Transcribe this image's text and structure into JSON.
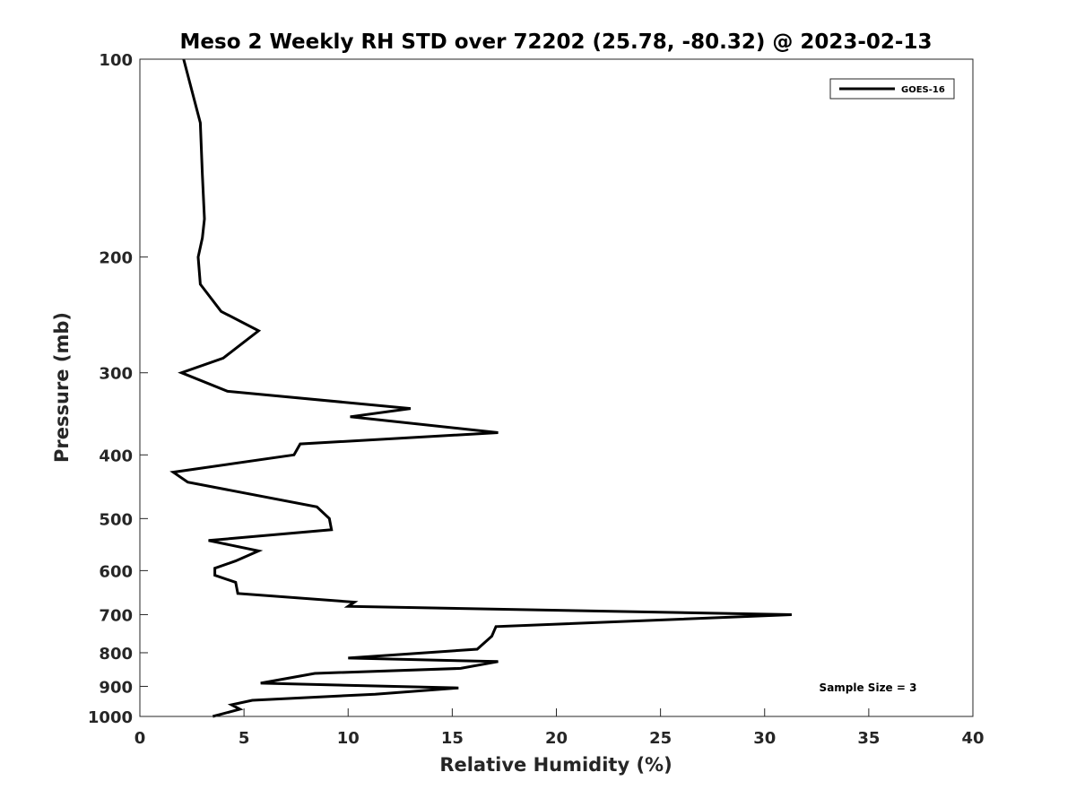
{
  "chart_data": {
    "type": "line",
    "title": "Meso 2 Weekly RH STD over 72202 (25.78, -80.32) @ 2023-02-13",
    "xlabel": "Relative Humidity (%)",
    "ylabel": "Pressure (mb)",
    "xlim": [
      0,
      40
    ],
    "ylim": [
      100,
      1000
    ],
    "y_scale": "log",
    "y_reversed": true,
    "x_ticks": [
      0,
      5,
      10,
      15,
      20,
      25,
      30,
      35,
      40
    ],
    "x_tick_labels": [
      "0",
      "5",
      "10",
      "15",
      "20",
      "25",
      "30",
      "35",
      "40"
    ],
    "y_ticks": [
      100,
      200,
      300,
      400,
      500,
      600,
      700,
      800,
      900,
      1000
    ],
    "y_tick_labels": [
      "100",
      "200",
      "300",
      "400",
      "500",
      "600",
      "700",
      "800",
      "900",
      "1000"
    ],
    "grid": false,
    "legend": {
      "position": "top-right",
      "entries": [
        "GOES-16"
      ]
    },
    "annotation": "Sample Size = 3",
    "series": [
      {
        "name": "GOES-16",
        "color": "#000000",
        "x": [
          2.1,
          2.9,
          3.0,
          3.1,
          3.0,
          2.8,
          2.9,
          3.9,
          5.7,
          4.0,
          2.0,
          4.2,
          13.0,
          10.1,
          17.2,
          7.7,
          7.4,
          1.6,
          2.3,
          8.5,
          9.1,
          9.2,
          3.3,
          5.7,
          4.6,
          3.6,
          3.6,
          4.6,
          4.7,
          10.3,
          10.0,
          31.3,
          17.1,
          16.9,
          16.2,
          10.0,
          17.2,
          15.4,
          8.4,
          5.8,
          15.3,
          11.3,
          5.4,
          4.4,
          4.8,
          3.5
        ],
        "y": [
          100,
          125,
          150,
          175,
          187,
          200,
          220,
          242,
          259,
          285,
          300,
          320,
          340,
          350,
          370,
          385,
          400,
          425,
          440,
          480,
          500,
          520,
          540,
          560,
          580,
          595,
          610,
          625,
          650,
          670,
          680,
          700,
          730,
          755,
          790,
          815,
          825,
          845,
          860,
          890,
          905,
          925,
          945,
          960,
          975,
          1000
        ]
      }
    ]
  }
}
